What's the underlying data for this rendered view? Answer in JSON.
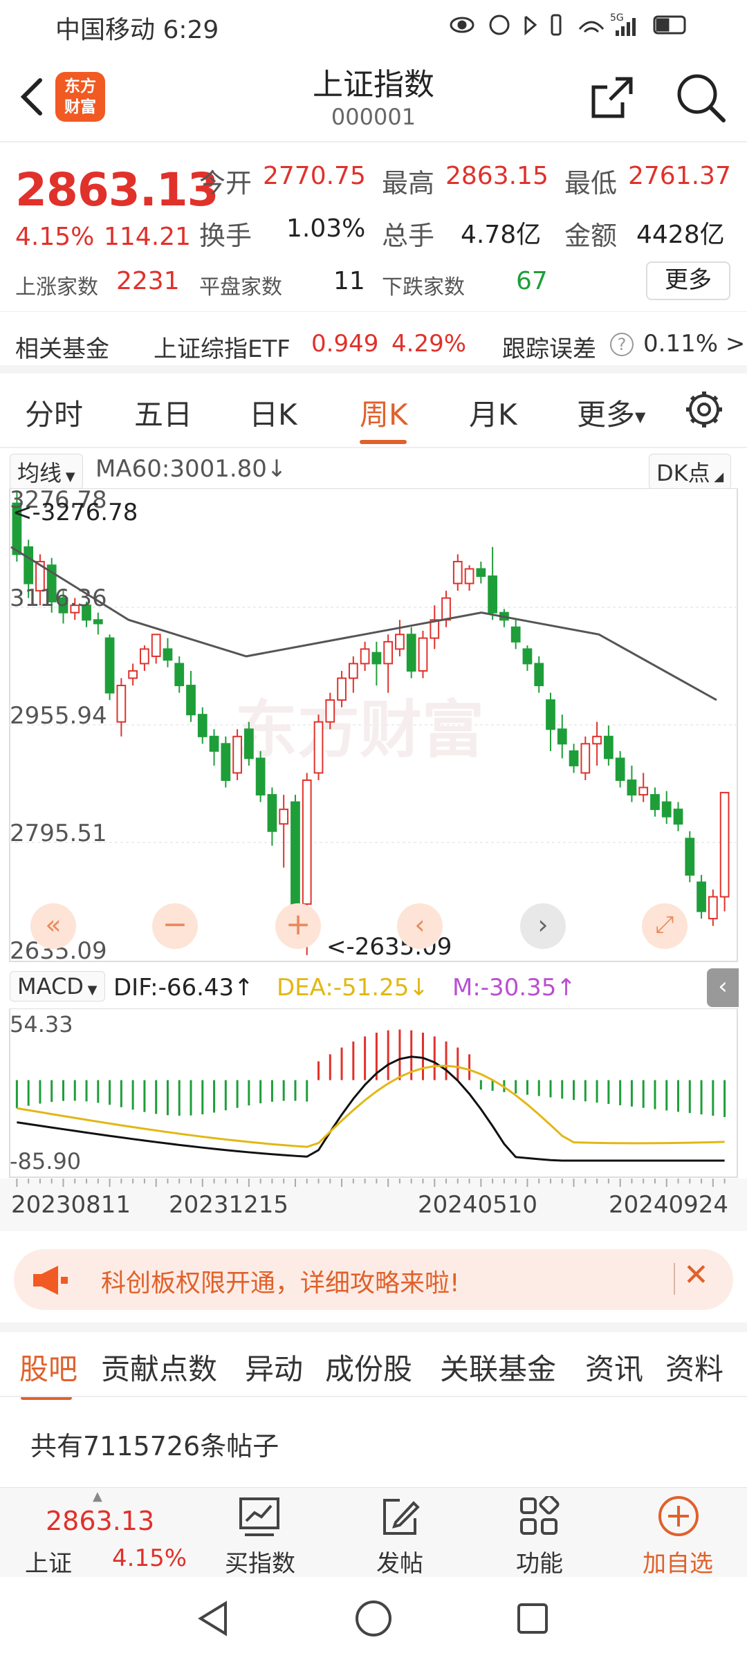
{
  "status": {
    "carrier_time": "中国移动 6:29",
    "indicators": "5G"
  },
  "header": {
    "logo_line1": "东方",
    "logo_line2": "财富",
    "title": "上证指数",
    "code": "000001"
  },
  "quote": {
    "price": "2863.13",
    "change_pct": "4.15%",
    "change_abs": "114.21",
    "open_label": "今开",
    "open": "2770.75",
    "high_label": "最高",
    "high": "2863.15",
    "low_label": "最低",
    "low": "2761.37",
    "turnover_label": "换手",
    "turnover": "1.03%",
    "volume_label": "总手",
    "volume": "4.78亿",
    "amount_label": "金额",
    "amount": "4428亿",
    "up_label": "上涨家数",
    "up": "2231",
    "flat_label": "平盘家数",
    "flat": "11",
    "down_label": "下跌家数",
    "down": "67",
    "more_btn": "更多"
  },
  "related": {
    "label": "相关基金",
    "fund_name": "上证综指ETF",
    "fund_price": "0.949",
    "fund_pct": "4.29%",
    "error_label": "跟踪误差",
    "error_value": "0.11% >"
  },
  "tabs": [
    "分时",
    "五日",
    "日K",
    "周K",
    "月K",
    "更多"
  ],
  "active_tab": "周K",
  "ma": {
    "selector": "均线",
    "ma60": "MA60:3001.80",
    "dk_button": "DK点"
  },
  "kchart_labels": {
    "top": "3276.78",
    "l2": "3116.36",
    "l3": "2955.94",
    "l4": "2795.51",
    "bottom": "2635.09",
    "max_marker": "<-3276.78",
    "min_marker": "<-2635.09",
    "watermark": "东方财富"
  },
  "macd": {
    "selector": "MACD",
    "dif": "DIF:-66.43",
    "dea": "DEA:-51.25",
    "m": "M:-30.35",
    "top": "54.33",
    "bottom": "-85.90"
  },
  "dates": [
    "20230811",
    "20231215",
    "20240510",
    "20240924"
  ],
  "banner": {
    "text": "科创板权限开通，详细攻略来啦!"
  },
  "bottom_tabs": [
    "股吧",
    "贡献点数",
    "异动",
    "成份股",
    "关联基金",
    "资讯",
    "资料"
  ],
  "posts": {
    "count_text": "共有7115726条帖子"
  },
  "bottombar": {
    "price": "2863.13",
    "name": "上证",
    "pct": "4.15%",
    "buy": "买指数",
    "post": "发帖",
    "func": "功能",
    "add": "加自选"
  },
  "colors": {
    "up": "#e0312b",
    "down": "#1e9e39",
    "accent": "#e0612b",
    "ma60": "#555555",
    "dea": "#e2b714",
    "m": "#b94fd1"
  },
  "chart_data": {
    "type": "candlestick",
    "period": "周K",
    "ylim": [
      2635.09,
      3276.78
    ],
    "dates": [
      "20230811",
      "20231215",
      "20240510",
      "20240924"
    ],
    "max_value": 3276.78,
    "min_value": 2635.09,
    "candles": [
      [
        3260,
        3190,
        3276,
        3180
      ],
      [
        3200,
        3150,
        3210,
        3130
      ],
      [
        3140,
        3180,
        3190,
        3120
      ],
      [
        3175,
        3125,
        3185,
        3110
      ],
      [
        3130,
        3110,
        3140,
        3095
      ],
      [
        3110,
        3120,
        3130,
        3100
      ],
      [
        3120,
        3100,
        3125,
        3090
      ],
      [
        3100,
        3095,
        3110,
        3080
      ],
      [
        3075,
        3000,
        3080,
        2990
      ],
      [
        2960,
        3010,
        3020,
        2940
      ],
      [
        3020,
        3030,
        3040,
        3010
      ],
      [
        3040,
        3060,
        3065,
        3030
      ],
      [
        3050,
        3080,
        3080,
        3040
      ],
      [
        3060,
        3045,
        3075,
        3035
      ],
      [
        3040,
        3010,
        3050,
        3000
      ],
      [
        3010,
        2970,
        3030,
        2960
      ],
      [
        2970,
        2940,
        2980,
        2930
      ],
      [
        2940,
        2920,
        2950,
        2900
      ],
      [
        2930,
        2880,
        2940,
        2870
      ],
      [
        2890,
        2940,
        2950,
        2880
      ],
      [
        2950,
        2910,
        2960,
        2900
      ],
      [
        2910,
        2860,
        2920,
        2850
      ],
      [
        2860,
        2810,
        2870,
        2790
      ],
      [
        2820,
        2840,
        2860,
        2760
      ],
      [
        2850,
        2700,
        2860,
        2680
      ],
      [
        2710,
        2880,
        2890,
        2640
      ],
      [
        2890,
        2960,
        2970,
        2880
      ],
      [
        2960,
        2990,
        3000,
        2950
      ],
      [
        2990,
        3020,
        3030,
        2980
      ],
      [
        3020,
        3040,
        3050,
        3000
      ],
      [
        3040,
        3060,
        3070,
        3030
      ],
      [
        3055,
        3040,
        3070,
        3010
      ],
      [
        3040,
        3070,
        3080,
        3000
      ],
      [
        3060,
        3080,
        3100,
        3050
      ],
      [
        3080,
        3030,
        3090,
        3020
      ],
      [
        3030,
        3075,
        3085,
        3020
      ],
      [
        3075,
        3100,
        3120,
        3060
      ],
      [
        3100,
        3130,
        3140,
        3090
      ],
      [
        3150,
        3180,
        3190,
        3140
      ],
      [
        3150,
        3170,
        3175,
        3140
      ],
      [
        3170,
        3160,
        3180,
        3150
      ],
      [
        3160,
        3110,
        3200,
        3100
      ],
      [
        3110,
        3100,
        3115,
        3090
      ],
      [
        3090,
        3070,
        3100,
        3060
      ],
      [
        3060,
        3040,
        3065,
        3030
      ],
      [
        3040,
        3010,
        3050,
        3000
      ],
      [
        2990,
        2950,
        3000,
        2920
      ],
      [
        2950,
        2930,
        2970,
        2910
      ],
      [
        2920,
        2900,
        2930,
        2890
      ],
      [
        2890,
        2930,
        2940,
        2880
      ],
      [
        2930,
        2940,
        2960,
        2900
      ],
      [
        2940,
        2910,
        2955,
        2900
      ],
      [
        2910,
        2880,
        2920,
        2870
      ],
      [
        2880,
        2860,
        2900,
        2850
      ],
      [
        2860,
        2870,
        2890,
        2850
      ],
      [
        2860,
        2840,
        2870,
        2830
      ],
      [
        2850,
        2830,
        2865,
        2820
      ],
      [
        2840,
        2820,
        2850,
        2810
      ],
      [
        2800,
        2750,
        2810,
        2740
      ],
      [
        2740,
        2700,
        2750,
        2690
      ],
      [
        2690,
        2720,
        2730,
        2680
      ],
      [
        2720,
        2863,
        2863,
        2700
      ]
    ],
    "ma60_approx": [
      3200,
      3100,
      3050,
      3080,
      3110,
      3080,
      2990
    ],
    "macd_ylim": [
      -85.9,
      54.33
    ]
  }
}
